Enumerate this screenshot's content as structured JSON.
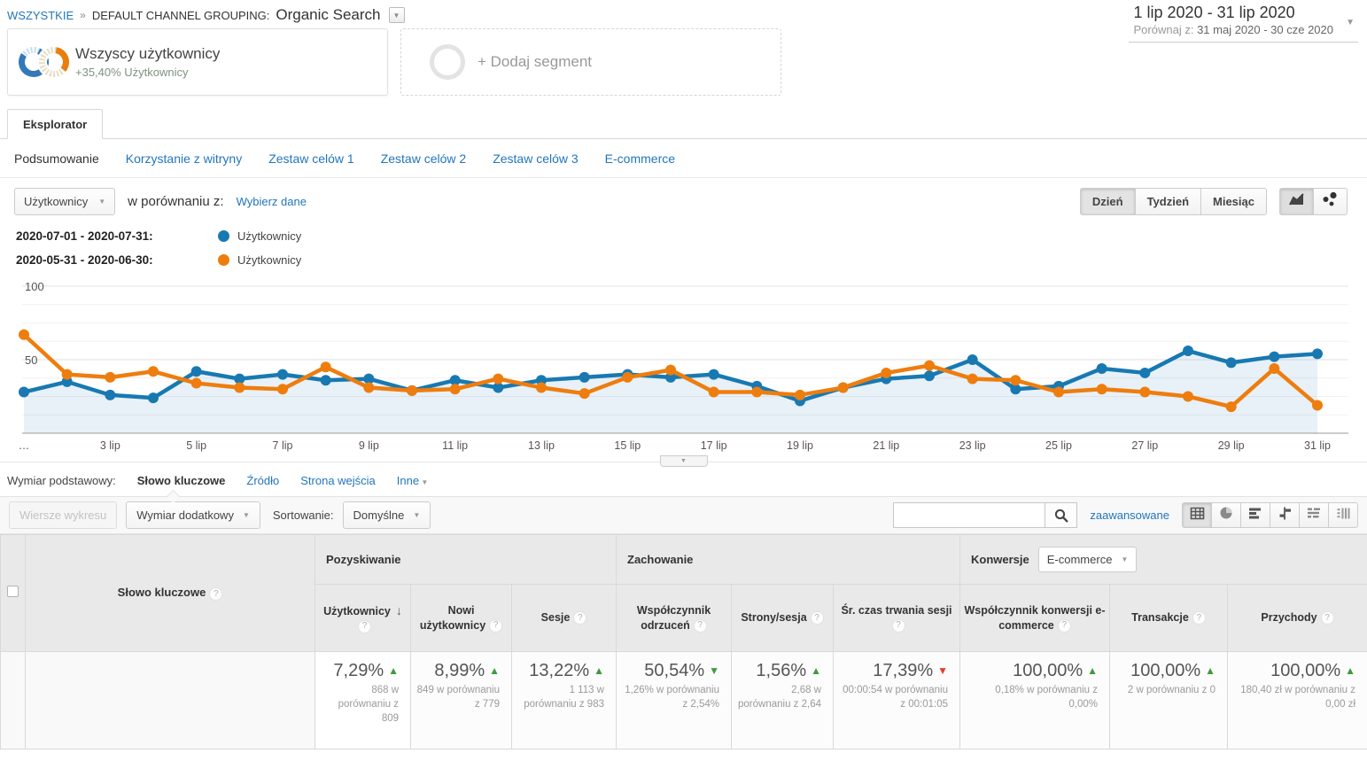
{
  "breadcrumb": {
    "root": "WSZYSTKIE",
    "separator": "»",
    "group_label": "DEFAULT CHANNEL GROUPING:",
    "group_value": "Organic Search"
  },
  "date_range": {
    "primary": "1 lip 2020 - 31 lip 2020",
    "compare_label": "Porównaj z:",
    "compare_value": "31 maj 2020 - 30 cze 2020"
  },
  "segments": {
    "active": {
      "title": "Wszyscy użytkownicy",
      "delta": "+35,40% Użytkownicy"
    },
    "add_label": "+ Dodaj segment"
  },
  "main_tab": "Eksplorator",
  "sub_tabs": [
    "Podsumowanie",
    "Korzystanie z witryny",
    "Zestaw celów 1",
    "Zestaw celów 2",
    "Zestaw celów 3",
    "E-commerce"
  ],
  "sub_tabs_active": "Podsumowanie",
  "metric_selector": {
    "value": "Użytkownicy",
    "compare_text": "w porównaniu z:",
    "compare_link": "Wybierz dane"
  },
  "granularity": {
    "options": [
      "Dzień",
      "Tydzień",
      "Miesiąc"
    ],
    "active": "Dzień"
  },
  "chart_type_icons": [
    {
      "name": "line-chart-icon",
      "active": true
    },
    {
      "name": "motion-chart-icon",
      "active": false
    }
  ],
  "legend": [
    {
      "range": "2020-07-01 - 2020-07-31:",
      "label": "Użytkownicy",
      "color": "#1879b2"
    },
    {
      "range": "2020-05-31 - 2020-06-30:",
      "label": "Użytkownicy",
      "color": "#ee7d0e"
    }
  ],
  "chart_data": {
    "type": "line",
    "title": "",
    "xlabel": "",
    "ylabel": "",
    "ylim": [
      0,
      100
    ],
    "yticks": [
      50,
      100
    ],
    "grid": true,
    "legend_position": "top-left",
    "x": [
      1,
      2,
      3,
      4,
      5,
      6,
      7,
      8,
      9,
      10,
      11,
      12,
      13,
      14,
      15,
      16,
      17,
      18,
      19,
      20,
      21,
      22,
      23,
      24,
      25,
      26,
      27,
      28,
      29,
      30,
      31
    ],
    "x_ticks": [
      {
        "day": 1,
        "label": "…"
      },
      {
        "day": 3,
        "label": "3 lip"
      },
      {
        "day": 5,
        "label": "5 lip"
      },
      {
        "day": 7,
        "label": "7 lip"
      },
      {
        "day": 9,
        "label": "9 lip"
      },
      {
        "day": 11,
        "label": "11 lip"
      },
      {
        "day": 13,
        "label": "13 lip"
      },
      {
        "day": 15,
        "label": "15 lip"
      },
      {
        "day": 17,
        "label": "17 lip"
      },
      {
        "day": 19,
        "label": "19 lip"
      },
      {
        "day": 21,
        "label": "21 lip"
      },
      {
        "day": 23,
        "label": "23 lip"
      },
      {
        "day": 25,
        "label": "25 lip"
      },
      {
        "day": 27,
        "label": "27 lip"
      },
      {
        "day": 29,
        "label": "29 lip"
      },
      {
        "day": 31,
        "label": "31 lip"
      }
    ],
    "series": [
      {
        "name": "Użytkownicy",
        "range": "2020-07-01 - 2020-07-31",
        "color": "#1879b2",
        "area_fill": true,
        "values": [
          28,
          35,
          26,
          24,
          42,
          37,
          40,
          36,
          37,
          29,
          36,
          31,
          36,
          38,
          40,
          38,
          40,
          32,
          22,
          31,
          37,
          39,
          50,
          30,
          32,
          44,
          41,
          56,
          48,
          52,
          54
        ]
      },
      {
        "name": "Użytkownicy",
        "range": "2020-05-31 - 2020-06-30",
        "color": "#ee7d0e",
        "area_fill": false,
        "values": [
          67,
          40,
          38,
          42,
          34,
          31,
          30,
          45,
          31,
          29,
          30,
          37,
          31,
          27,
          38,
          43,
          28,
          28,
          26,
          31,
          41,
          46,
          37,
          36,
          28,
          30,
          28,
          25,
          18,
          44,
          19
        ]
      }
    ]
  },
  "dimension_bar": {
    "label": "Wymiar podstawowy:",
    "items": [
      {
        "label": "Słowo kluczowe",
        "active": true,
        "dropdown": false
      },
      {
        "label": "Źródło",
        "active": false,
        "dropdown": false
      },
      {
        "label": "Strona wejścia",
        "active": false,
        "dropdown": false
      },
      {
        "label": "Inne",
        "active": false,
        "dropdown": true
      }
    ]
  },
  "toolbar": {
    "chart_rows_label": "Wiersze wykresu",
    "secondary_dim_label": "Wymiar dodatkowy",
    "sort_label": "Sortowanie:",
    "sort_value": "Domyślne",
    "search_value": "",
    "advanced_label": "zaawansowane",
    "view_icons": [
      "table-view-icon",
      "percentage-view-icon",
      "performance-view-icon",
      "comparison-view-icon",
      "term-cloud-view-icon",
      "pivot-view-icon"
    ],
    "view_active": "table-view-icon"
  },
  "table": {
    "dimension_column": "Słowo kluczowe",
    "groups": [
      {
        "label": "Pozyskiwanie",
        "span": 3,
        "dropdown": ""
      },
      {
        "label": "Zachowanie",
        "span": 3,
        "dropdown": ""
      },
      {
        "label": "Konwersje",
        "span": 3,
        "dropdown": "E-commerce"
      }
    ],
    "columns": [
      {
        "label": "Użytkownicy",
        "sorted": true
      },
      {
        "label": "Nowi użytkownicy",
        "sorted": false
      },
      {
        "label": "Sesje",
        "sorted": false
      },
      {
        "label": "Współczynnik odrzuceń",
        "sorted": false
      },
      {
        "label": "Strony/sesja",
        "sorted": false
      },
      {
        "label": "Śr. czas trwania sesji",
        "sorted": false
      },
      {
        "label": "Współczynnik konwersji e-commerce",
        "sorted": false
      },
      {
        "label": "Transakcje",
        "sorted": false
      },
      {
        "label": "Przychody",
        "sorted": false
      }
    ],
    "totals": [
      {
        "percent": "7,29%",
        "direction": "up",
        "sentiment": "good",
        "comparison": "868 w porównaniu z 809"
      },
      {
        "percent": "8,99%",
        "direction": "up",
        "sentiment": "good",
        "comparison": "849 w porównaniu z 779"
      },
      {
        "percent": "13,22%",
        "direction": "up",
        "sentiment": "good",
        "comparison": "1 113 w porównaniu z 983"
      },
      {
        "percent": "50,54%",
        "direction": "down",
        "sentiment": "good",
        "comparison": "1,26% w porównaniu z 2,54%"
      },
      {
        "percent": "1,56%",
        "direction": "up",
        "sentiment": "good",
        "comparison": "2,68 w porównaniu z 2,64"
      },
      {
        "percent": "17,39%",
        "direction": "down",
        "sentiment": "bad",
        "comparison": "00:00:54 w porównaniu z 00:01:05"
      },
      {
        "percent": "100,00%",
        "direction": "up",
        "sentiment": "good",
        "comparison": "0,18% w porównaniu z 0,00%"
      },
      {
        "percent": "100,00%",
        "direction": "up",
        "sentiment": "good",
        "comparison": "2 w porównaniu z 0"
      },
      {
        "percent": "100,00%",
        "direction": "up",
        "sentiment": "good",
        "comparison": "180,40 zł w porównaniu z 0,00 zł"
      }
    ]
  },
  "colors": {
    "series_current": "#1879b2",
    "series_compare": "#ee7d0e",
    "positive": "#3d9b3d",
    "negative": "#e53e2e",
    "link": "#2276bb"
  }
}
